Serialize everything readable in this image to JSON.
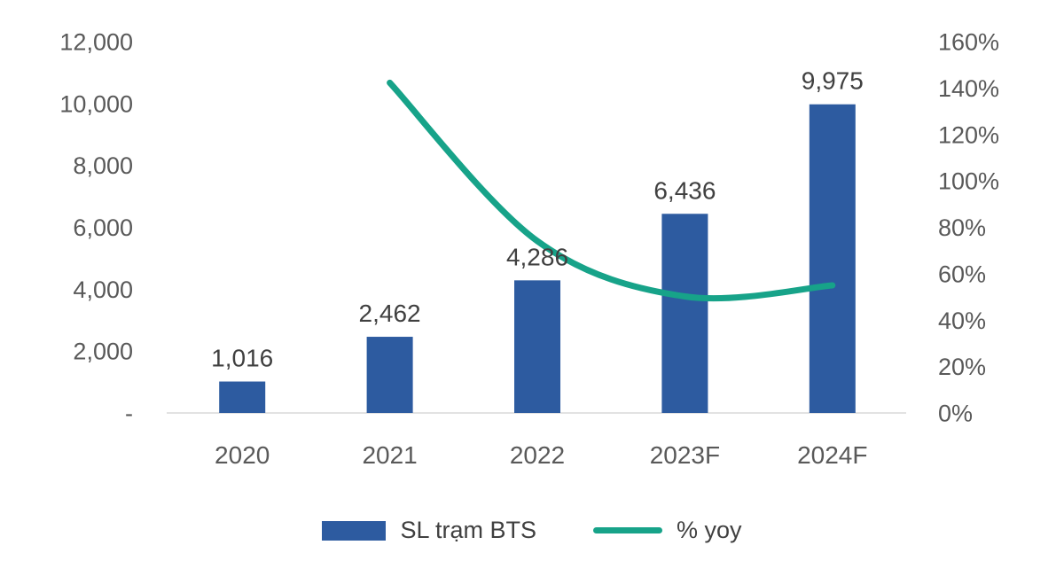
{
  "chart_data": {
    "type": "bar",
    "title": "",
    "categories": [
      "2020",
      "2021",
      "2022",
      "2023F",
      "2024F"
    ],
    "series": [
      {
        "name": "SL trạm BTS",
        "type": "bar",
        "axis": "left",
        "values": [
          1016,
          2462,
          4286,
          6436,
          9975
        ],
        "value_labels": [
          "1,016",
          "2,462",
          "4,286",
          "6,436",
          "9,975"
        ],
        "color": "#2D5BA0"
      },
      {
        "name": "% yoy",
        "type": "line",
        "axis": "right",
        "values": [
          null,
          142.3,
          74.1,
          50.2,
          55.0
        ],
        "color": "#17A389"
      }
    ],
    "left_axis": {
      "min": 0,
      "max": 12000,
      "step": 2000,
      "tick_labels": [
        "-",
        "2,000",
        "4,000",
        "6,000",
        "8,000",
        "10,000",
        "12,000"
      ]
    },
    "right_axis": {
      "min": 0,
      "max": 160,
      "step": 20,
      "tick_labels": [
        "0%",
        "20%",
        "40%",
        "60%",
        "80%",
        "100%",
        "120%",
        "140%",
        "160%"
      ]
    },
    "grid": false,
    "legend_position": "bottom"
  },
  "colors": {
    "bar": "#2D5BA0",
    "line": "#17A389",
    "axis_text": "#595959",
    "data_label": "#404040",
    "axis_line": "#D9D9D9",
    "background": "#FFFFFF"
  }
}
